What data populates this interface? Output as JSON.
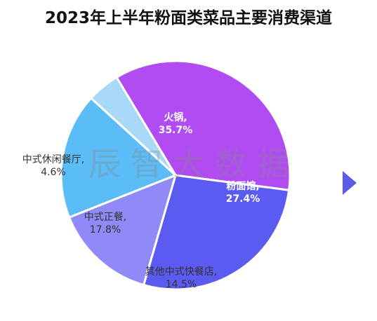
{
  "title": "2023年上半年粉面类菜品主要消费渠道",
  "watermark": "辰智大数据",
  "chart_data": {
    "type": "pie",
    "title": "2023年上半年粉面类菜品主要消费渠道",
    "unit": "%",
    "slices": [
      {
        "label": "火锅,",
        "value": 35.7,
        "value_label": "35.7%",
        "color": "#b14cf3",
        "text_color": "#ffffff",
        "bold": true
      },
      {
        "label": "粉面馆,",
        "value": 27.4,
        "value_label": "27.4%",
        "color": "#5b5bf1",
        "text_color": "#ffffff",
        "bold": true
      },
      {
        "label": "其他中式快餐店,",
        "value": 14.5,
        "value_label": "14.5%",
        "color": "#8f8af7",
        "text_color": "#333333",
        "bold": false
      },
      {
        "label": "中式正餐,",
        "value": 17.8,
        "value_label": "17.8%",
        "color": "#5bbcf8",
        "text_color": "#333333",
        "bold": false
      },
      {
        "label": "中式休闲餐厅,",
        "value": 4.6,
        "value_label": "4.6%",
        "color": "#a9d9f8",
        "text_color": "#333333",
        "bold": false
      }
    ]
  },
  "nav": {
    "next_icon": "triangle-right-icon",
    "color": "#5a5ce8"
  }
}
